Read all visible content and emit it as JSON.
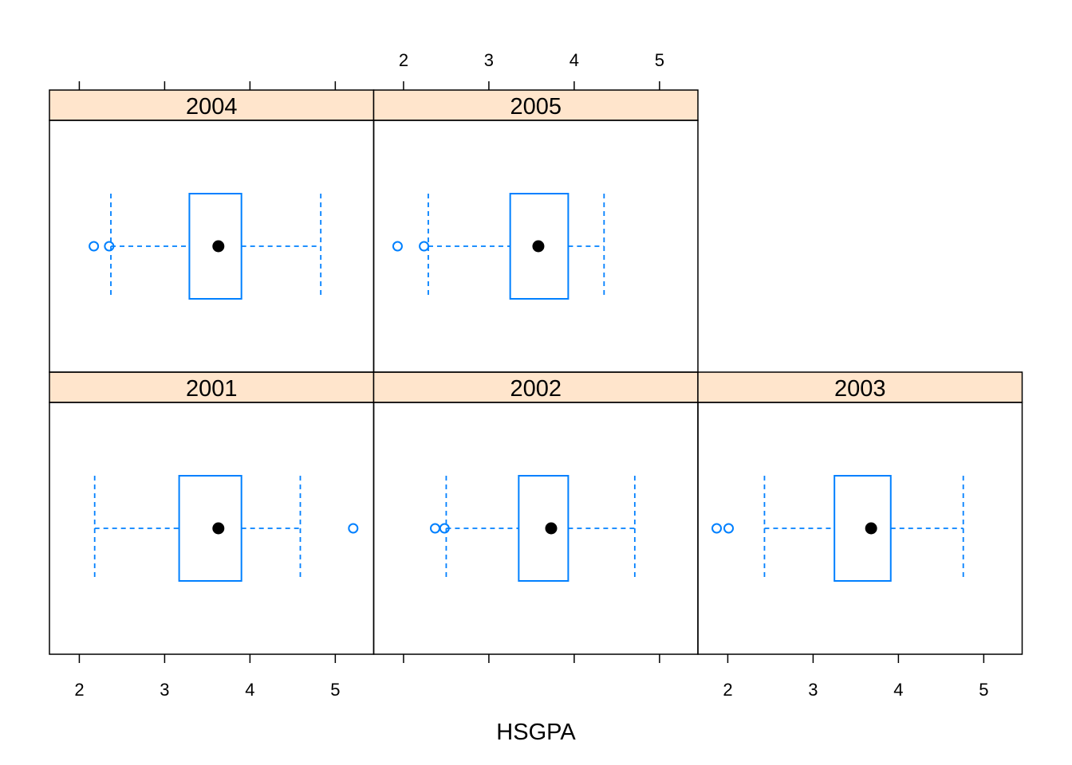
{
  "chart_data": {
    "type": "boxplot",
    "xlabel": "HSGPA",
    "xlim": [
      1.65,
      5.45
    ],
    "x_ticks": [
      2,
      3,
      4,
      5
    ],
    "x_tick_labels": [
      "2",
      "3",
      "4",
      "5"
    ],
    "layout": {
      "columns": 3,
      "rows": 2
    },
    "colors": {
      "box": "#0080ff",
      "median": "#000000",
      "strip": "#ffe5cc",
      "frame": "#000000"
    },
    "panels": [
      {
        "label": "2001",
        "whisker_low": 2.18,
        "q1": 3.17,
        "median": 3.63,
        "q3": 3.9,
        "whisker_high": 4.59,
        "outliers": [
          5.21
        ]
      },
      {
        "label": "2002",
        "whisker_low": 2.5,
        "q1": 3.35,
        "median": 3.73,
        "q3": 3.93,
        "whisker_high": 4.71,
        "outliers": [
          2.37,
          2.48
        ]
      },
      {
        "label": "2003",
        "whisker_low": 2.43,
        "q1": 3.25,
        "median": 3.68,
        "q3": 3.91,
        "whisker_high": 4.76,
        "outliers": [
          1.87,
          2.01
        ]
      },
      {
        "label": "2004",
        "whisker_low": 2.37,
        "q1": 3.29,
        "median": 3.63,
        "q3": 3.9,
        "whisker_high": 4.83,
        "outliers": [
          2.17,
          2.35
        ]
      },
      {
        "label": "2005",
        "whisker_low": 2.29,
        "q1": 3.25,
        "median": 3.58,
        "q3": 3.93,
        "whisker_high": 4.35,
        "outliers": [
          1.93,
          2.24
        ]
      }
    ]
  }
}
